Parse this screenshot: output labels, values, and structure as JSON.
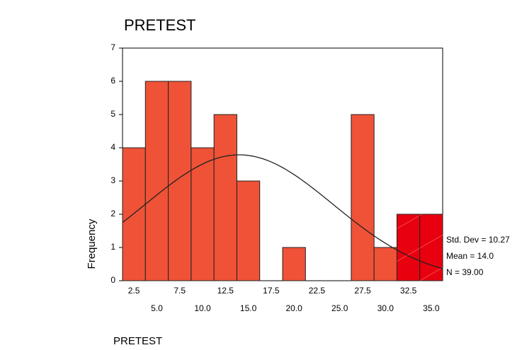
{
  "chart_data": {
    "type": "histogram",
    "title": "PRETEST",
    "x_label": "PRETEST",
    "y_label": "Frequency",
    "bins": [
      1.25,
      3.75,
      6.25,
      8.75,
      11.25,
      13.75,
      16.25,
      18.75,
      21.25,
      23.75,
      26.25,
      28.75,
      31.25,
      33.75,
      36.25
    ],
    "values": [
      4,
      6,
      6,
      4,
      5,
      3,
      0,
      1,
      0,
      0,
      5,
      1,
      2,
      2
    ],
    "colors": [
      "#ef5237",
      "#ef5237",
      "#ef5237",
      "#ef5237",
      "#ef5237",
      "#ef5237",
      "#ef5237",
      "#ef5237",
      "#ef5237",
      "#ef5237",
      "#ef5237",
      "#ef5237",
      "#e8000e",
      "#e8000e"
    ],
    "xlim": [
      1.25,
      36.25
    ],
    "ylim": [
      0,
      7
    ],
    "yticks": [
      0,
      1,
      2,
      3,
      4,
      5,
      6,
      7
    ],
    "xticks": [
      2.5,
      {
        "value": 5,
        "label": "5.0"
      },
      7.5,
      {
        "value": 10,
        "label": "10.0"
      },
      12.5,
      {
        "value": 15,
        "label": "15.0"
      },
      17.5,
      {
        "value": 20,
        "label": "20.0"
      },
      22.5,
      {
        "value": 25,
        "label": "25.0"
      },
      27.5,
      {
        "value": 30,
        "label": "30.0"
      },
      32.5,
      {
        "value": 35,
        "label": "35.0"
      }
    ],
    "stats": [
      {
        "value": 10.27,
        "label": "Std. Dev = 10.27"
      },
      {
        "value": 14,
        "label": "Mean = 14.0"
      },
      {
        "value": 39,
        "label": "N = 39.00"
      }
    ],
    "curve_color": "#222222"
  }
}
